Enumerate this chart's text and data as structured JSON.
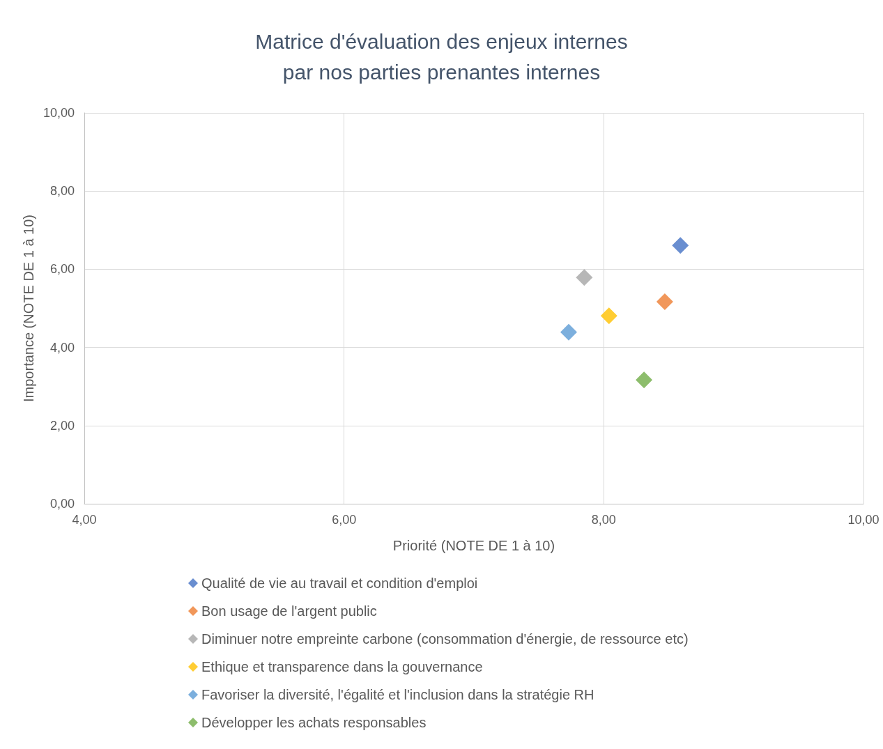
{
  "chart_data": {
    "type": "scatter",
    "title": "Matrice d'évaluation des enjeux internes\npar nos parties prenantes internes",
    "xlabel": "Priorité (NOTE DE 1 à 10)",
    "ylabel": "Importance (NOTE DE 1 à 10)",
    "xlim": [
      4,
      10
    ],
    "ylim": [
      0,
      10
    ],
    "xticks": [
      {
        "value": 4,
        "label": "4,00"
      },
      {
        "value": 6,
        "label": "6,00"
      },
      {
        "value": 8,
        "label": "8,00"
      },
      {
        "value": 10,
        "label": "10,00"
      }
    ],
    "yticks": [
      {
        "value": 0,
        "label": "0,00"
      },
      {
        "value": 2,
        "label": "2,00"
      },
      {
        "value": 4,
        "label": "4,00"
      },
      {
        "value": 6,
        "label": "6,00"
      },
      {
        "value": 8,
        "label": "8,00"
      },
      {
        "value": 10,
        "label": "10,00"
      }
    ],
    "grid": true,
    "legend": "bottom",
    "marker": "diamond",
    "series": [
      {
        "name": "Qualité de vie au travail et condition d'emploi",
        "color": "#4472c4",
        "x": [
          8.59
        ],
        "values": [
          6.61
        ]
      },
      {
        "name": "Bon usage de l'argent public",
        "color": "#ed7d31",
        "x": [
          8.47
        ],
        "values": [
          5.17
        ]
      },
      {
        "name": "Diminuer notre empreinte carbone (consommation d'énergie, de ressource etc)",
        "color": "#a5a5a5",
        "x": [
          7.85
        ],
        "values": [
          5.79
        ]
      },
      {
        "name": "Ethique et transparence dans la gouvernance",
        "color": "#ffc000",
        "x": [
          8.04
        ],
        "values": [
          4.81
        ]
      },
      {
        "name": "Favoriser la diversité, l'égalité et l'inclusion dans la stratégie RH",
        "color": "#5b9bd5",
        "x": [
          7.73
        ],
        "values": [
          4.39
        ]
      },
      {
        "name": "Développer les achats responsables",
        "color": "#70ad47",
        "x": [
          8.31
        ],
        "values": [
          3.17
        ]
      }
    ]
  }
}
